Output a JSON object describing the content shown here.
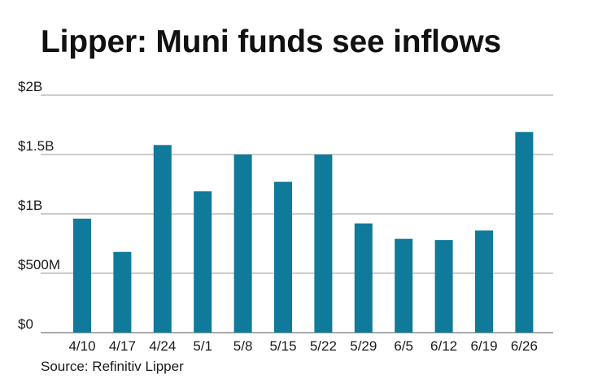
{
  "title": "Lipper: Muni funds see inflows",
  "source": "Source: Refinitiv Lipper",
  "colors": {
    "bar": "#0f7a9a"
  },
  "chart_data": {
    "type": "bar",
    "title": "Lipper: Muni funds see inflows",
    "xlabel": "",
    "ylabel": "",
    "categories": [
      "4/10",
      "4/17",
      "4/24",
      "5/1",
      "5/8",
      "5/15",
      "5/22",
      "5/29",
      "6/5",
      "6/12",
      "6/19",
      "6/26"
    ],
    "values": [
      0.96,
      0.68,
      1.58,
      1.19,
      1.5,
      1.27,
      1.5,
      0.92,
      0.79,
      0.78,
      0.86,
      1.69
    ],
    "ylim": [
      0,
      2
    ],
    "yticks": [
      {
        "value": 0,
        "label": "$0"
      },
      {
        "value": 0.5,
        "label": "$500M"
      },
      {
        "value": 1,
        "label": "$1B"
      },
      {
        "value": 1.5,
        "label": "$1.5B"
      },
      {
        "value": 2,
        "label": "$2B"
      }
    ],
    "units": "billions of dollars",
    "grid": true,
    "legend": "none"
  }
}
